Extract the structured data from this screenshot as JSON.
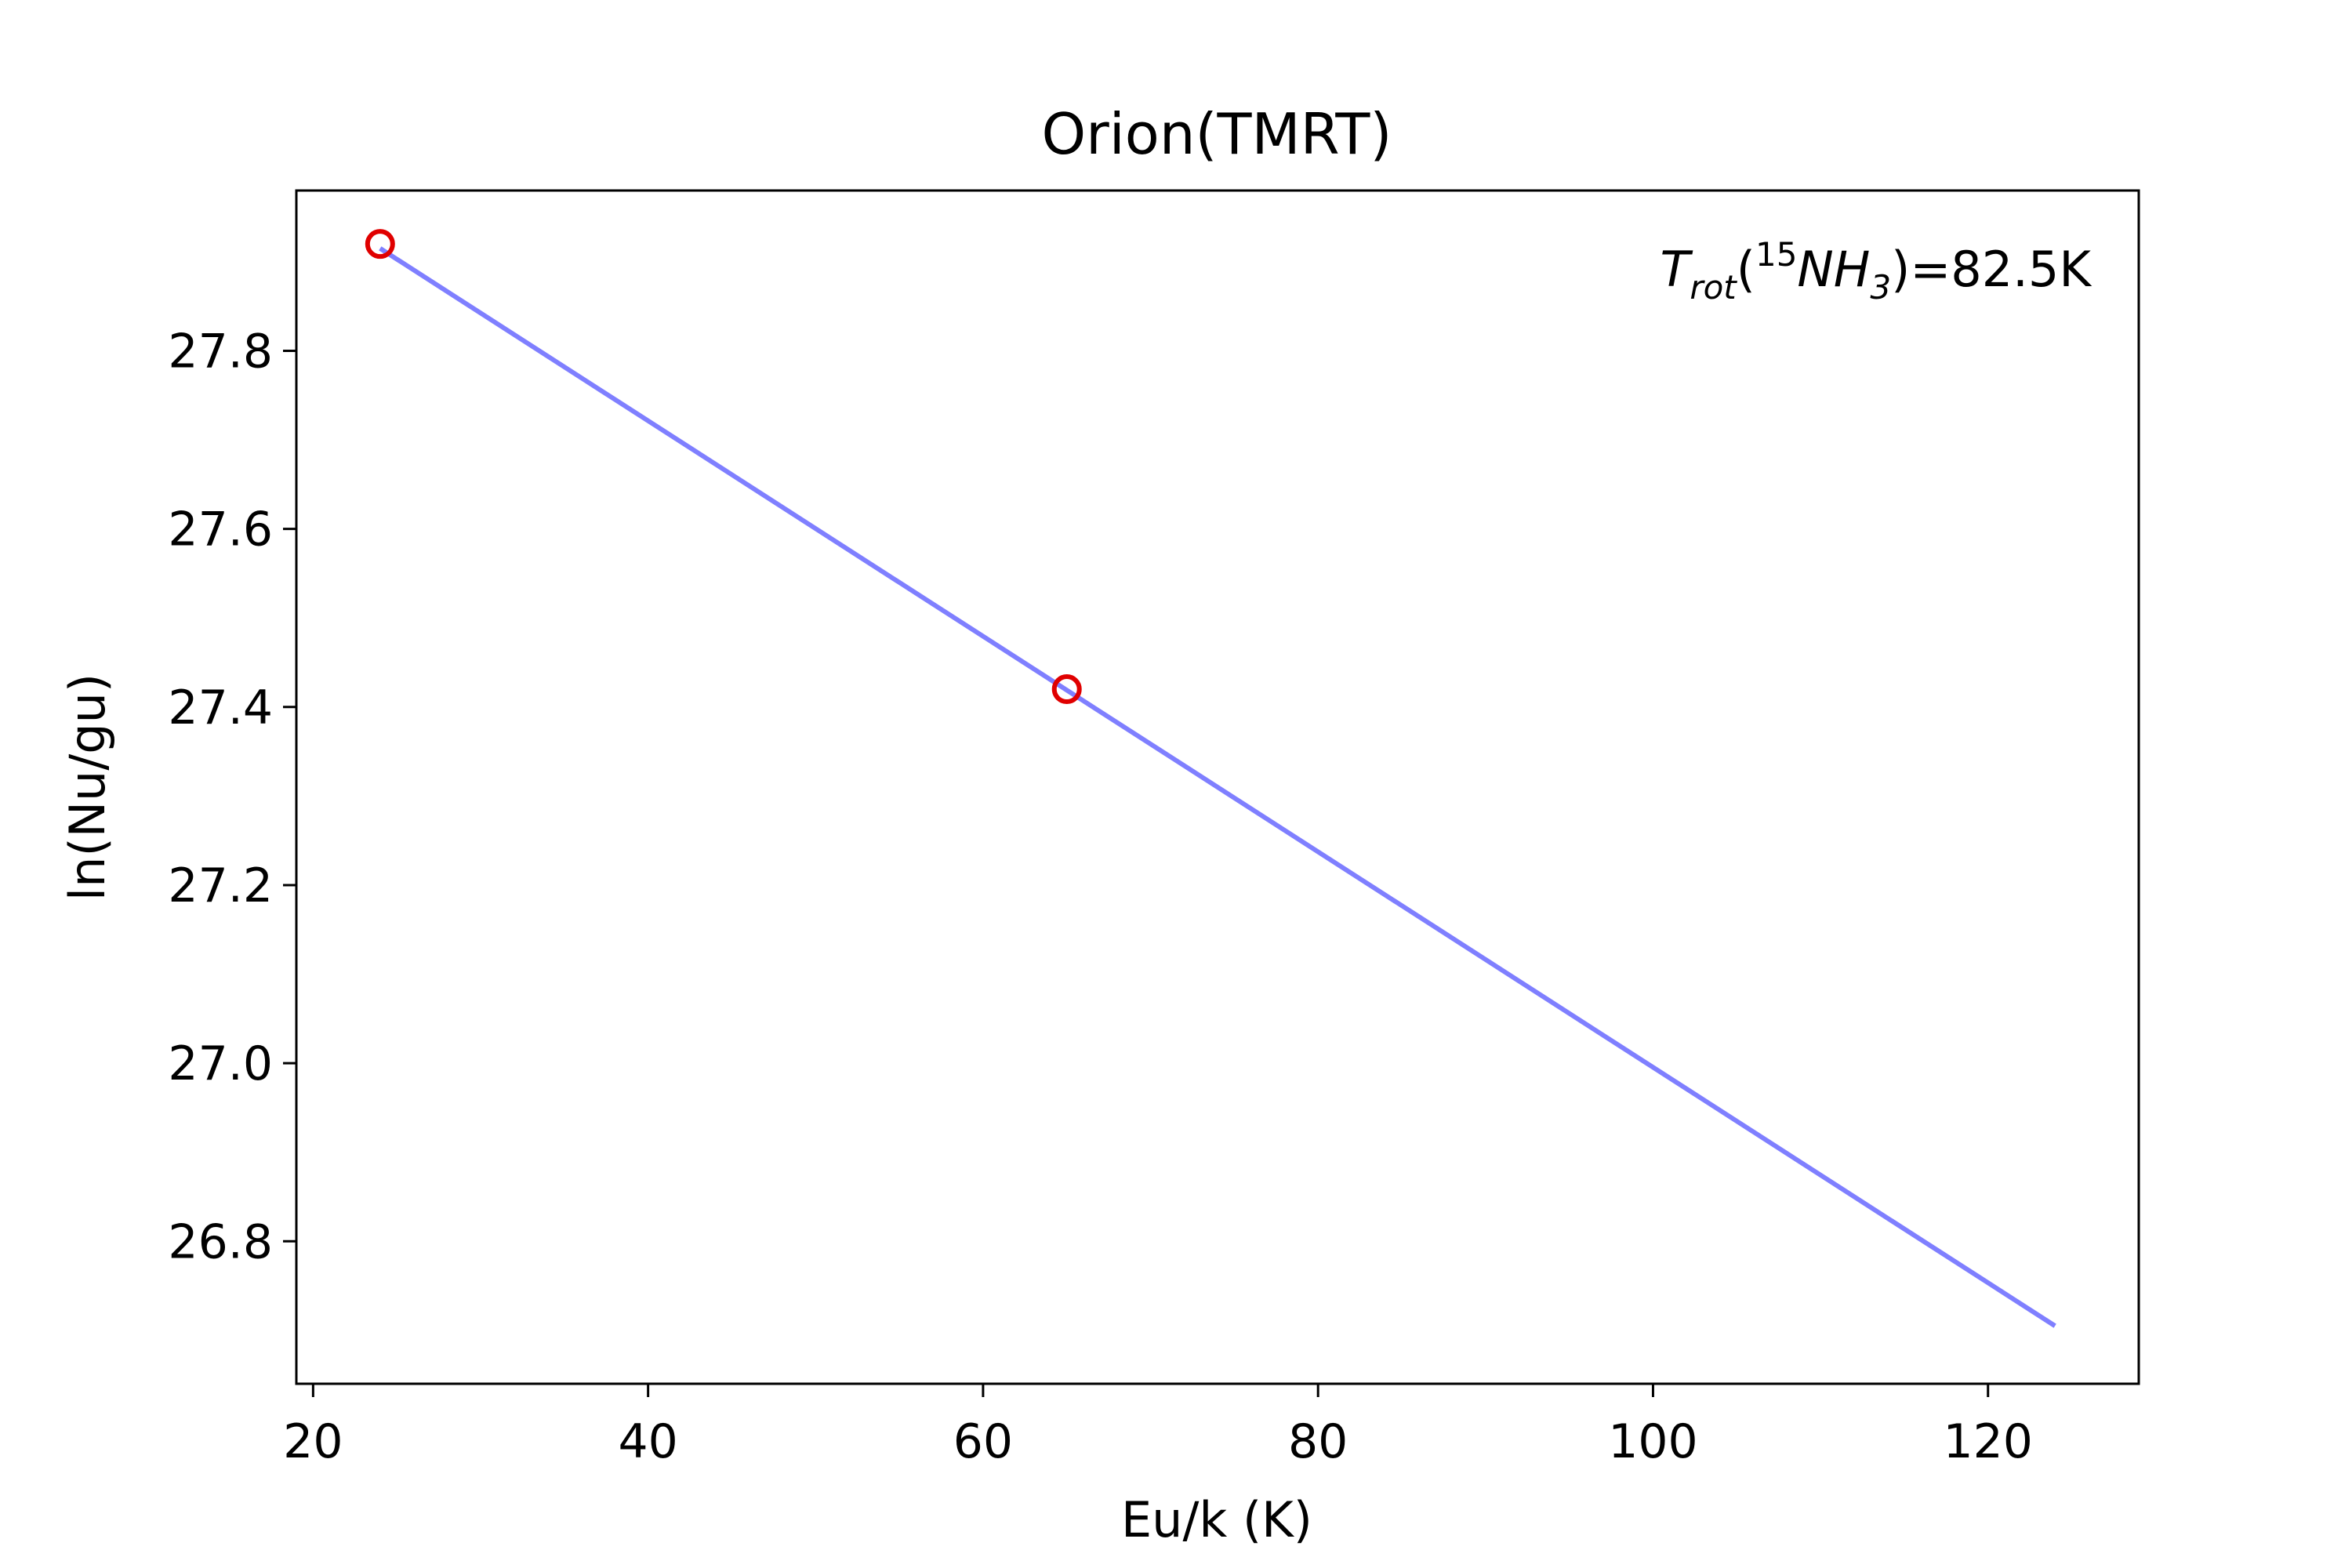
{
  "chart_data": {
    "type": "scatter",
    "title": "Orion(TMRT)",
    "xlabel": "Eu/k (K)",
    "ylabel": "ln(Nu/gu)",
    "xlim": [
      19,
      129
    ],
    "ylim": [
      26.64,
      27.98
    ],
    "xticks": [
      20,
      40,
      60,
      80,
      100,
      120
    ],
    "yticks": [
      26.8,
      27.0,
      27.2,
      27.4,
      27.6,
      27.8
    ],
    "xtick_labels": [
      "20",
      "40",
      "60",
      "80",
      100,
      "120"
    ],
    "ytick_labels": [
      "26.8",
      "27.0",
      "27.2",
      "27.4",
      "27.6",
      "27.8"
    ],
    "grid": false,
    "series": [
      {
        "kind": "scatter",
        "marker": "open-circle",
        "color": "#e00000",
        "x": [
          24,
          65
        ],
        "y": [
          27.92,
          27.42
        ]
      },
      {
        "kind": "line",
        "color": "#7f7fff",
        "x": [
          24,
          124
        ],
        "y": [
          27.915,
          26.705
        ]
      }
    ],
    "annotation": {
      "base": "T",
      "sub": "rot",
      "paren_open": "(",
      "iso": "15",
      "mol": "NH",
      "mol_sub": "3",
      "rest": ")=82.5K",
      "position": "top-right"
    }
  }
}
